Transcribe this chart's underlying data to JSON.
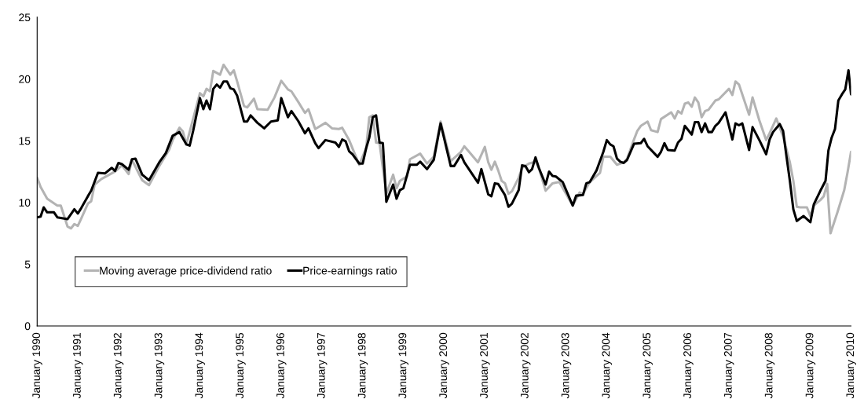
{
  "chart_data": {
    "type": "line",
    "xlim": [
      "1990-01",
      "2010-01"
    ],
    "xticks": [
      {
        "value": "1990-01",
        "label": "January 1990"
      },
      {
        "value": "1991-01",
        "label": "January 1991"
      },
      {
        "value": "1992-01",
        "label": "January 1992"
      },
      {
        "value": "1993-01",
        "label": "January 1993"
      },
      {
        "value": "1994-01",
        "label": "January 1994"
      },
      {
        "value": "1995-01",
        "label": "January 1995"
      },
      {
        "value": "1996-01",
        "label": "January 1996"
      },
      {
        "value": "1997-01",
        "label": "January 1997"
      },
      {
        "value": "1998-01",
        "label": "January 1998"
      },
      {
        "value": "1999-01",
        "label": "January 1999"
      },
      {
        "value": "2000-01",
        "label": "January 2000"
      },
      {
        "value": "2001-01",
        "label": "January 2001"
      },
      {
        "value": "2002-01",
        "label": "January 2002"
      },
      {
        "value": "2003-01",
        "label": "January 2003"
      },
      {
        "value": "2004-01",
        "label": "January 2004"
      },
      {
        "value": "2005-01",
        "label": "January 2005"
      },
      {
        "value": "2006-01",
        "label": "January 2006"
      },
      {
        "value": "2007-01",
        "label": "January 2007"
      },
      {
        "value": "2008-01",
        "label": "January 2008"
      },
      {
        "value": "2009-01",
        "label": "January 2009"
      },
      {
        "value": "2010-01",
        "label": "January 2010"
      }
    ],
    "ylim": [
      0,
      25
    ],
    "yticks": [
      0,
      5,
      10,
      15,
      20,
      25
    ],
    "grid": false,
    "legend": "bottom left",
    "marker": "none",
    "line_style": "solid",
    "series": [
      {
        "name": "Moving average price-dividend ratio",
        "color": "#b3b3b3",
        "x": [
          "1990-01",
          "1990-02",
          "1990-04",
          "1990-07",
          "1990-08",
          "1990-10",
          "1990-11",
          "1990-12",
          "1991-01",
          "1991-02",
          "1991-04",
          "1991-05",
          "1991-06",
          "1991-08",
          "1991-10",
          "1991-12",
          "1992-02",
          "1992-04",
          "1992-05",
          "1992-08",
          "1992-10",
          "1993-01",
          "1993-04",
          "1993-05",
          "1993-07",
          "1993-08",
          "1993-09",
          "1994-01",
          "1994-02",
          "1994-03",
          "1994-04",
          "1994-05",
          "1994-07",
          "1994-08",
          "1994-10",
          "1994-11",
          "1994-12",
          "1995-02",
          "1995-03",
          "1995-05",
          "1995-06",
          "1995-09",
          "1995-11",
          "1996-01",
          "1996-03",
          "1996-04",
          "1996-06",
          "1996-08",
          "1996-09",
          "1996-11",
          "1997-02",
          "1997-04",
          "1997-06",
          "1997-07",
          "1997-09",
          "1997-12",
          "1998-02",
          "1998-03",
          "1998-04",
          "1998-05",
          "1998-06",
          "1998-08",
          "1998-10",
          "1998-11",
          "1998-12",
          "1999-02",
          "1999-03",
          "1999-06",
          "1999-08",
          "1999-10",
          "1999-12",
          "2000-03",
          "2000-06",
          "2000-07",
          "2000-09",
          "2000-11",
          "2001-01",
          "2001-02",
          "2001-03",
          "2001-04",
          "2001-05",
          "2001-06",
          "2001-07",
          "2001-08",
          "2001-09",
          "2001-11",
          "2001-12",
          "2002-02",
          "2002-04",
          "2002-05",
          "2002-07",
          "2002-09",
          "2002-10",
          "2002-11",
          "2003-03",
          "2003-05",
          "2003-06",
          "2003-08",
          "2003-11",
          "2003-12",
          "2004-02",
          "2004-04",
          "2004-06",
          "2004-07",
          "2004-09",
          "2004-10",
          "2004-11",
          "2005-01",
          "2005-02",
          "2005-04",
          "2005-05",
          "2005-08",
          "2005-09",
          "2005-10",
          "2005-11",
          "2005-12",
          "2006-01",
          "2006-02",
          "2006-03",
          "2006-04",
          "2006-05",
          "2006-06",
          "2006-07",
          "2006-09",
          "2006-10",
          "2007-01",
          "2007-02",
          "2007-03",
          "2007-04",
          "2007-05",
          "2007-07",
          "2007-08",
          "2007-10",
          "2007-12",
          "2008-01",
          "2008-03",
          "2008-05",
          "2008-07",
          "2008-08",
          "2008-09",
          "2008-10",
          "2008-12",
          "2009-01",
          "2009-02",
          "2009-04",
          "2009-05",
          "2009-06",
          "2009-07",
          "2009-09",
          "2009-11",
          "2009-12",
          "2010-01"
        ],
        "values": [
          12.0,
          11.25,
          10.3,
          9.75,
          9.75,
          8.05,
          7.9,
          8.25,
          8.1,
          8.7,
          9.9,
          10.1,
          11.45,
          11.9,
          12.2,
          12.5,
          13.0,
          12.3,
          13.45,
          11.8,
          11.4,
          12.95,
          14.3,
          15.05,
          16.05,
          15.75,
          14.7,
          18.85,
          18.6,
          19.2,
          19.0,
          20.65,
          20.35,
          21.15,
          20.35,
          20.7,
          19.8,
          17.8,
          17.7,
          18.4,
          17.55,
          17.5,
          18.5,
          19.85,
          19.15,
          19.0,
          18.15,
          17.25,
          17.55,
          15.95,
          16.45,
          16.0,
          15.95,
          16.05,
          15.05,
          13.05,
          14.4,
          16.9,
          17.05,
          14.85,
          14.8,
          10.7,
          12.25,
          11.15,
          11.75,
          12.1,
          13.5,
          13.95,
          13.15,
          13.7,
          16.55,
          13.35,
          14.1,
          14.55,
          13.9,
          13.25,
          14.5,
          13.25,
          12.65,
          13.3,
          12.6,
          11.75,
          11.55,
          10.7,
          10.9,
          12.0,
          12.8,
          13.15,
          13.3,
          12.8,
          10.95,
          11.55,
          11.6,
          11.65,
          9.75,
          10.8,
          10.7,
          11.65,
          12.4,
          13.7,
          13.7,
          13.05,
          13.25,
          13.55,
          15.1,
          15.8,
          16.2,
          16.55,
          15.85,
          15.7,
          16.75,
          17.3,
          16.8,
          17.4,
          17.2,
          18.0,
          18.1,
          17.75,
          18.5,
          18.1,
          16.9,
          17.4,
          17.5,
          18.25,
          18.35,
          19.2,
          18.7,
          19.8,
          19.55,
          18.75,
          17.1,
          18.5,
          16.65,
          15.05,
          15.6,
          16.8,
          15.35,
          13.25,
          11.75,
          9.65,
          9.6,
          9.6,
          8.9,
          9.75,
          10.2,
          10.5,
          11.5,
          7.5,
          9.2,
          11.0,
          12.45,
          14.1
        ]
      },
      {
        "name": "Price-earnings ratio",
        "color": "#000000",
        "x": [
          "1990-01",
          "1990-02",
          "1990-03",
          "1990-04",
          "1990-06",
          "1990-07",
          "1990-10",
          "1990-12",
          "1991-01",
          "1991-02",
          "1991-04",
          "1991-05",
          "1991-07",
          "1991-09",
          "1991-11",
          "1991-12",
          "1992-01",
          "1992-02",
          "1992-04",
          "1992-05",
          "1992-06",
          "1992-08",
          "1992-10",
          "1993-01",
          "1993-03",
          "1993-05",
          "1993-07",
          "1993-09",
          "1993-10",
          "1993-11",
          "1994-01",
          "1994-02",
          "1994-03",
          "1994-04",
          "1994-05",
          "1994-06",
          "1994-07",
          "1994-08",
          "1994-09",
          "1994-10",
          "1994-11",
          "1994-12",
          "1995-02",
          "1995-03",
          "1995-04",
          "1995-06",
          "1995-08",
          "1995-10",
          "1995-12",
          "1996-01",
          "1996-03",
          "1996-04",
          "1996-06",
          "1996-08",
          "1996-09",
          "1996-11",
          "1996-12",
          "1997-02",
          "1997-05",
          "1997-06",
          "1997-07",
          "1997-08",
          "1997-09",
          "1997-10",
          "1997-12",
          "1998-01",
          "1998-02",
          "1998-03",
          "1998-04",
          "1998-05",
          "1998-06",
          "1998-07",
          "1998-08",
          "1998-10",
          "1998-11",
          "1998-12",
          "1999-01",
          "1999-03",
          "1999-05",
          "1999-06",
          "1999-08",
          "1999-10",
          "1999-12",
          "2000-03",
          "2000-04",
          "2000-06",
          "2000-07",
          "2000-11",
          "2000-12",
          "2001-02",
          "2001-03",
          "2001-04",
          "2001-05",
          "2001-07",
          "2001-08",
          "2001-09",
          "2001-11",
          "2001-12",
          "2002-01",
          "2002-02",
          "2002-03",
          "2002-04",
          "2002-05",
          "2002-07",
          "2002-08",
          "2002-09",
          "2002-10",
          "2002-12",
          "2003-03",
          "2003-04",
          "2003-06",
          "2003-07",
          "2003-08",
          "2003-10",
          "2003-12",
          "2004-01",
          "2004-02",
          "2004-03",
          "2004-04",
          "2004-05",
          "2004-06",
          "2004-07",
          "2004-09",
          "2004-11",
          "2004-12",
          "2005-01",
          "2005-04",
          "2005-05",
          "2005-06",
          "2005-07",
          "2005-09",
          "2005-10",
          "2005-11",
          "2005-12",
          "2006-02",
          "2006-03",
          "2006-04",
          "2006-05",
          "2006-06",
          "2006-07",
          "2006-08",
          "2006-09",
          "2006-10",
          "2006-12",
          "2007-02",
          "2007-03",
          "2007-04",
          "2007-05",
          "2007-07",
          "2007-08",
          "2007-10",
          "2007-12",
          "2008-01",
          "2008-02",
          "2008-04",
          "2008-05",
          "2008-06",
          "2008-07",
          "2008-08",
          "2008-09",
          "2008-11",
          "2009-01",
          "2009-02",
          "2009-04",
          "2009-05-17",
          "2009-06-12",
          "2009-07-11",
          "2009-08-10",
          "2009-09-09",
          "2009-10-11",
          "2009-11-10",
          "2009-12-09",
          "2010-01"
        ],
        "values": [
          8.8,
          8.85,
          9.6,
          9.2,
          9.2,
          8.8,
          8.65,
          9.45,
          9.1,
          9.55,
          10.5,
          10.95,
          12.4,
          12.35,
          12.8,
          12.55,
          13.2,
          13.1,
          12.65,
          13.5,
          13.55,
          12.25,
          11.8,
          13.25,
          14.0,
          15.4,
          15.7,
          14.7,
          14.6,
          15.8,
          18.45,
          17.55,
          18.25,
          17.55,
          19.2,
          19.55,
          19.3,
          19.8,
          19.8,
          19.25,
          19.15,
          18.65,
          16.55,
          16.55,
          17.05,
          16.45,
          16.0,
          16.55,
          16.65,
          18.45,
          16.9,
          17.4,
          16.6,
          15.6,
          16.0,
          14.8,
          14.4,
          15.05,
          14.85,
          14.5,
          15.1,
          14.95,
          14.15,
          13.9,
          13.15,
          13.15,
          14.4,
          15.25,
          16.9,
          17.05,
          14.85,
          14.8,
          10.05,
          11.45,
          10.3,
          11.0,
          11.15,
          13.05,
          13.05,
          13.3,
          12.7,
          13.45,
          16.4,
          12.95,
          12.95,
          13.85,
          13.25,
          11.6,
          12.7,
          10.65,
          10.5,
          11.55,
          11.5,
          10.6,
          9.65,
          9.9,
          11.0,
          13.0,
          12.95,
          12.45,
          12.7,
          13.65,
          12.8,
          11.45,
          12.5,
          12.15,
          12.1,
          11.65,
          9.75,
          10.55,
          10.6,
          11.55,
          11.65,
          12.6,
          14.1,
          15.05,
          14.7,
          14.55,
          13.55,
          13.3,
          13.2,
          13.45,
          14.75,
          14.8,
          15.15,
          14.55,
          13.7,
          14.1,
          14.8,
          14.25,
          14.2,
          14.85,
          15.15,
          16.2,
          15.5,
          16.5,
          16.5,
          15.7,
          16.4,
          15.7,
          15.7,
          16.2,
          16.45,
          17.3,
          15.1,
          16.4,
          16.25,
          16.4,
          14.25,
          16.1,
          15.05,
          13.9,
          15.1,
          15.7,
          16.35,
          15.8,
          13.7,
          11.75,
          9.45,
          8.5,
          8.9,
          8.4,
          9.85,
          10.95,
          11.75,
          14.2,
          15.25,
          15.95,
          18.25,
          18.75,
          19.15,
          20.7,
          18.75
        ]
      }
    ]
  }
}
